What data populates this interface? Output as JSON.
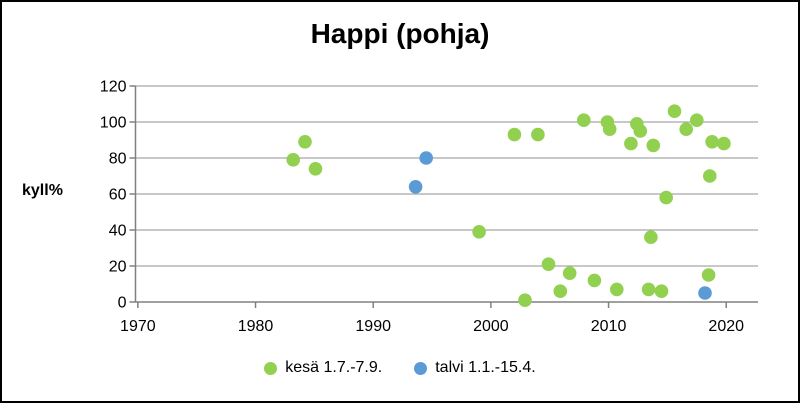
{
  "title": "Happi (pohja)",
  "y_axis_label": "kyll%",
  "legend": [
    {
      "label": "kesä 1.7.-7.9.",
      "color": "#92d050",
      "marker": "circle-icon"
    },
    {
      "label": "talvi 1.1.-15.4.",
      "color": "#5b9bd5",
      "marker": "circle-icon"
    }
  ],
  "colors": {
    "summer": "#92d050",
    "winter": "#5b9bd5",
    "gridline": "#a6a6a6",
    "axis": "#808080",
    "text": "#000000",
    "background": "#ffffff",
    "border": "#000000"
  },
  "chart_data": {
    "type": "scatter",
    "title": "Happi (pohja)",
    "xlabel": "",
    "ylabel": "kyll%",
    "xlim": [
      1969.8,
      2022.7
    ],
    "ylim": [
      0,
      120
    ],
    "x_ticks": [
      1970,
      1980,
      1990,
      2000,
      2010,
      2020
    ],
    "y_ticks": [
      0,
      20,
      40,
      60,
      80,
      100,
      120
    ],
    "grid": true,
    "legend_position": "bottom",
    "marker_radius": 6.8,
    "series": [
      {
        "name": "kesä 1.7.-7.9.",
        "color": "#92d050",
        "points": [
          [
            1983.2,
            79
          ],
          [
            1984.2,
            89
          ],
          [
            1985.1,
            74
          ],
          [
            1999.0,
            39
          ],
          [
            2002.0,
            93
          ],
          [
            2002.9,
            1
          ],
          [
            2004.0,
            93
          ],
          [
            2004.9,
            21
          ],
          [
            2005.9,
            6
          ],
          [
            2006.7,
            16
          ],
          [
            2007.9,
            101
          ],
          [
            2008.8,
            12
          ],
          [
            2009.9,
            100
          ],
          [
            2010.1,
            96
          ],
          [
            2010.7,
            7
          ],
          [
            2011.9,
            88
          ],
          [
            2012.4,
            99
          ],
          [
            2012.7,
            95
          ],
          [
            2013.4,
            7
          ],
          [
            2013.6,
            36
          ],
          [
            2013.8,
            87
          ],
          [
            2014.5,
            6
          ],
          [
            2014.9,
            58
          ],
          [
            2015.6,
            106
          ],
          [
            2016.6,
            96
          ],
          [
            2017.5,
            101
          ],
          [
            2018.5,
            15
          ],
          [
            2018.6,
            70
          ],
          [
            2018.8,
            89
          ],
          [
            2019.8,
            88
          ]
        ]
      },
      {
        "name": "talvi 1.1.-15.4.",
        "color": "#5b9bd5",
        "points": [
          [
            1993.6,
            64
          ],
          [
            1994.5,
            80
          ],
          [
            2018.2,
            5
          ]
        ]
      }
    ]
  }
}
